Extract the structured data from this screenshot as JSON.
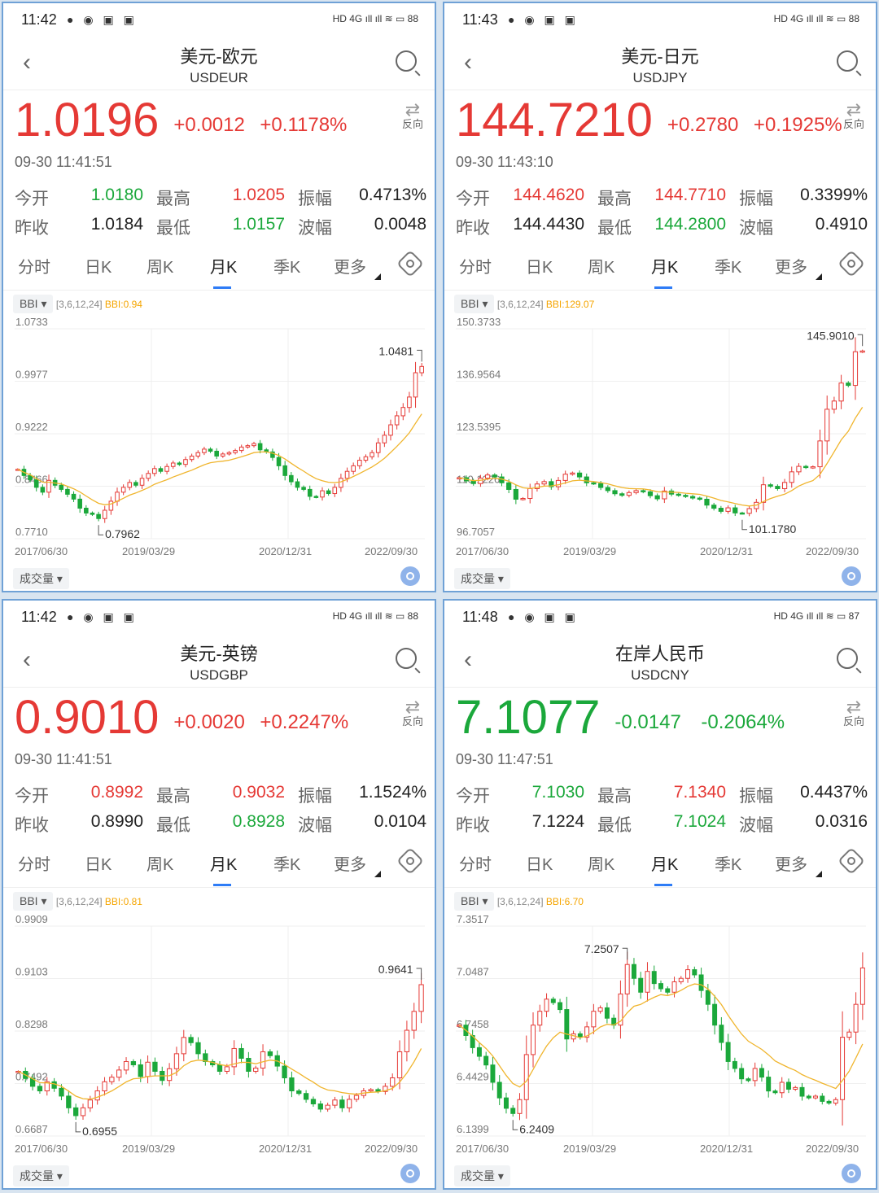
{
  "colors": {
    "up": "#e53935",
    "down": "#1ba83b",
    "bbi_line": "#f0b52d",
    "accent": "#2e7cf6"
  },
  "common": {
    "tabs": [
      "分时",
      "日K",
      "周K",
      "月K",
      "季K",
      "更多"
    ],
    "active_tab": "月K",
    "swap_label": "反向",
    "labels": {
      "open": "今开",
      "prev": "昨收",
      "high": "最高",
      "low": "最低",
      "amp": "振幅",
      "range": "波幅"
    },
    "indicator_button": "BBI ▾",
    "indicator_params": "[3,6,12,24]",
    "volume_button": "成交量 ▾",
    "status_icons": "● ◉ ▣ ▣",
    "status_right": "HD 4G ıll  ıll ≋ ▭"
  },
  "panels": [
    {
      "time": "11:42",
      "battery": "88",
      "title": "美元-欧元",
      "code": "USDEUR",
      "price": "1.0196",
      "direction": "up",
      "change": "+0.0012",
      "change_pct": "+0.1178%",
      "timestamp": "09-30 11:41:51",
      "open": "1.0180",
      "open_dir": "down",
      "high": "1.0205",
      "high_dir": "up",
      "amp": "0.4713%",
      "prev": "1.0184",
      "low": "1.0157",
      "low_dir": "down",
      "range": "0.0048",
      "bbi": "BBI:0.94",
      "chart_data": {
        "type": "candlestick",
        "y_ticks": [
          "1.0733",
          "0.9977",
          "0.9222",
          "0.8466",
          "0.7710"
        ],
        "ylim": [
          0.771,
          1.0733
        ],
        "x_ticks": [
          "2017/06/30",
          "2019/03/29",
          "2020/12/31",
          "2022/09/30"
        ],
        "max_label": "1.0481",
        "min_label": "0.7962",
        "close": [
          0.871,
          0.862,
          0.856,
          0.845,
          0.838,
          0.855,
          0.848,
          0.842,
          0.835,
          0.828,
          0.815,
          0.808,
          0.806,
          0.8,
          0.812,
          0.825,
          0.838,
          0.845,
          0.852,
          0.848,
          0.858,
          0.865,
          0.872,
          0.868,
          0.875,
          0.88,
          0.878,
          0.885,
          0.89,
          0.895,
          0.9,
          0.897,
          0.89,
          0.893,
          0.895,
          0.898,
          0.903,
          0.905,
          0.908,
          0.899,
          0.896,
          0.888,
          0.876,
          0.862,
          0.853,
          0.845,
          0.842,
          0.832,
          0.831,
          0.84,
          0.836,
          0.845,
          0.858,
          0.868,
          0.876,
          0.884,
          0.889,
          0.895,
          0.909,
          0.92,
          0.935,
          0.948,
          0.96,
          0.975,
          1.01,
          1.019
        ]
      }
    },
    {
      "time": "11:43",
      "battery": "88",
      "title": "美元-日元",
      "code": "USDJPY",
      "price": "144.7210",
      "direction": "up",
      "change": "+0.2780",
      "change_pct": "+0.1925%",
      "timestamp": "09-30 11:43:10",
      "open": "144.4620",
      "open_dir": "up",
      "high": "144.7710",
      "high_dir": "up",
      "amp": "0.3399%",
      "prev": "144.4430",
      "low": "144.2800",
      "low_dir": "down",
      "range": "0.4910",
      "bbi": "BBI:129.07",
      "chart_data": {
        "type": "candlestick",
        "y_ticks": [
          "150.3733",
          "136.9564",
          "123.5395",
          "110.1226",
          "96.7057"
        ],
        "ylim": [
          96.7057,
          150.3733
        ],
        "x_ticks": [
          "2017/06/30",
          "2019/03/29",
          "2020/12/31",
          "2022/09/30"
        ],
        "max_label": "145.9010",
        "min_label": "101.1780",
        "close": [
          112.3,
          111.5,
          110.8,
          112.2,
          113.0,
          112.5,
          111.0,
          109.3,
          106.8,
          107.0,
          109.5,
          110.7,
          111.3,
          110.0,
          111.6,
          113.2,
          113.5,
          112.5,
          111.0,
          110.8,
          109.8,
          109.0,
          108.2,
          107.8,
          108.5,
          109.0,
          108.7,
          107.7,
          106.9,
          108.9,
          108.1,
          107.8,
          107.5,
          107.1,
          106.8,
          105.3,
          104.5,
          103.7,
          104.6,
          103.3,
          103.2,
          104.4,
          106.0,
          110.5,
          110.1,
          109.5,
          111.1,
          113.8,
          115.2,
          114.9,
          115.1,
          121.7,
          129.8,
          131.9,
          136.5,
          135.9,
          144.5,
          144.7
        ]
      }
    },
    {
      "time": "11:42",
      "battery": "88",
      "title": "美元-英镑",
      "code": "USDGBP",
      "price": "0.9010",
      "direction": "up",
      "change": "+0.0020",
      "change_pct": "+0.2247%",
      "timestamp": "09-30 11:41:51",
      "open": "0.8992",
      "open_dir": "up",
      "high": "0.9032",
      "high_dir": "up",
      "amp": "1.1524%",
      "prev": "0.8990",
      "low": "0.8928",
      "low_dir": "down",
      "range": "0.0104",
      "bbi": "BBI:0.81",
      "chart_data": {
        "type": "candlestick",
        "y_ticks": [
          "0.9909",
          "0.9103",
          "0.8298",
          "0.7492",
          "0.6687"
        ],
        "ylim": [
          0.6687,
          0.9909
        ],
        "x_ticks": [
          "2017/06/30",
          "2019/03/29",
          "2020/12/31",
          "2022/09/30"
        ],
        "max_label": "0.9641",
        "min_label": "0.6955",
        "close": [
          0.768,
          0.757,
          0.745,
          0.738,
          0.752,
          0.742,
          0.73,
          0.712,
          0.7,
          0.712,
          0.724,
          0.738,
          0.752,
          0.759,
          0.77,
          0.783,
          0.778,
          0.76,
          0.782,
          0.768,
          0.754,
          0.772,
          0.795,
          0.82,
          0.812,
          0.795,
          0.783,
          0.778,
          0.768,
          0.775,
          0.803,
          0.788,
          0.768,
          0.773,
          0.798,
          0.792,
          0.776,
          0.758,
          0.738,
          0.734,
          0.725,
          0.718,
          0.71,
          0.716,
          0.724,
          0.712,
          0.725,
          0.731,
          0.738,
          0.74,
          0.737,
          0.745,
          0.758,
          0.798,
          0.831,
          0.86,
          0.901
        ]
      }
    },
    {
      "time": "11:48",
      "battery": "87",
      "title": "在岸人民币",
      "code": "USDCNY",
      "price": "7.1077",
      "direction": "down",
      "change": "-0.0147",
      "change_pct": "-0.2064%",
      "timestamp": "09-30 11:47:51",
      "open": "7.1030",
      "open_dir": "down",
      "high": "7.1340",
      "high_dir": "up",
      "amp": "0.4437%",
      "prev": "7.1224",
      "low": "7.1024",
      "low_dir": "down",
      "range": "0.0316",
      "bbi": "BBI:6.70",
      "chart_data": {
        "type": "candlestick",
        "y_ticks": [
          "7.3517",
          "7.0487",
          "6.7458",
          "6.4429",
          "6.1399"
        ],
        "ylim": [
          6.1399,
          7.3517
        ],
        "x_ticks": [
          "2017/06/30",
          "2019/03/29",
          "2020/12/31",
          "2022/09/30"
        ],
        "max_label": "7.2507",
        "min_label": "6.2409",
        "close": [
          6.78,
          6.72,
          6.65,
          6.6,
          6.55,
          6.45,
          6.36,
          6.3,
          6.27,
          6.35,
          6.61,
          6.78,
          6.86,
          6.93,
          6.91,
          6.87,
          6.7,
          6.73,
          6.71,
          6.77,
          6.86,
          6.88,
          6.82,
          6.78,
          6.96,
          7.13,
          7.05,
          6.97,
          7.09,
          7.02,
          6.99,
          6.97,
          7.03,
          7.05,
          7.1,
          7.07,
          6.98,
          6.9,
          6.78,
          6.68,
          6.57,
          6.53,
          6.47,
          6.46,
          6.53,
          6.48,
          6.4,
          6.39,
          6.45,
          6.41,
          6.42,
          6.37,
          6.36,
          6.37,
          6.34,
          6.33,
          6.35,
          6.71,
          6.74,
          6.9,
          7.11
        ]
      }
    }
  ]
}
